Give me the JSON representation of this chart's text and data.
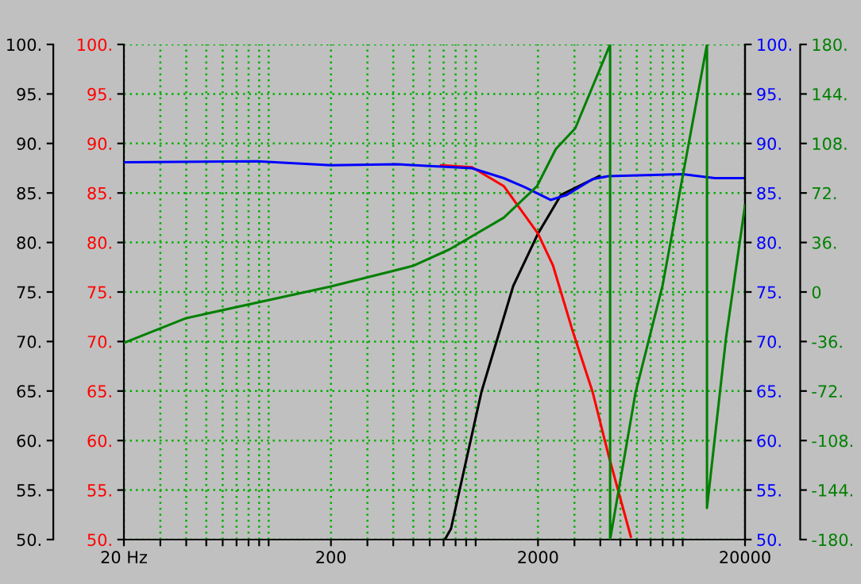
{
  "chart_data": {
    "type": "line",
    "log": "x",
    "grid": true,
    "xlim": [
      20,
      20000
    ],
    "xticks": [
      {
        "value": 20,
        "label": "20 Hz"
      },
      {
        "value": 30,
        "label": null
      },
      {
        "value": 40,
        "label": null
      },
      {
        "value": 50,
        "label": null
      },
      {
        "value": 60,
        "label": null
      },
      {
        "value": 70,
        "label": null
      },
      {
        "value": 80,
        "label": null
      },
      {
        "value": 90,
        "label": null
      },
      {
        "value": 100,
        "label": null
      },
      {
        "value": 200,
        "label": "200"
      },
      {
        "value": 300,
        "label": null
      },
      {
        "value": 400,
        "label": null
      },
      {
        "value": 500,
        "label": null
      },
      {
        "value": 600,
        "label": null
      },
      {
        "value": 700,
        "label": null
      },
      {
        "value": 800,
        "label": null
      },
      {
        "value": 900,
        "label": null
      },
      {
        "value": 1000,
        "label": null
      },
      {
        "value": 2000,
        "label": "2000"
      },
      {
        "value": 3000,
        "label": null
      },
      {
        "value": 4000,
        "label": null
      },
      {
        "value": 5000,
        "label": null
      },
      {
        "value": 6000,
        "label": null
      },
      {
        "value": 7000,
        "label": null
      },
      {
        "value": 8000,
        "label": null
      },
      {
        "value": 9000,
        "label": null
      },
      {
        "value": 10000,
        "label": null
      },
      {
        "value": 20000,
        "label": "20000"
      }
    ],
    "ylim": [
      50,
      100
    ],
    "yticks": [
      {
        "value": 50,
        "label": "50."
      },
      {
        "value": 55,
        "label": "55."
      },
      {
        "value": 60,
        "label": "60."
      },
      {
        "value": 65,
        "label": "65."
      },
      {
        "value": 70,
        "label": "70."
      },
      {
        "value": 75,
        "label": "75."
      },
      {
        "value": 80,
        "label": "80."
      },
      {
        "value": 85,
        "label": "85."
      },
      {
        "value": 90,
        "label": "90."
      },
      {
        "value": 95,
        "label": "95."
      },
      {
        "value": 100,
        "label": "100."
      }
    ],
    "y2lim": [
      50,
      100
    ],
    "y2ticks": [
      {
        "value": 50,
        "label": "50."
      },
      {
        "value": 55,
        "label": "55."
      },
      {
        "value": 60,
        "label": "60."
      },
      {
        "value": 65,
        "label": "65."
      },
      {
        "value": 70,
        "label": "70."
      },
      {
        "value": 75,
        "label": "75."
      },
      {
        "value": 80,
        "label": "80."
      },
      {
        "value": 85,
        "label": "85."
      },
      {
        "value": 90,
        "label": "90."
      },
      {
        "value": 95,
        "label": "95."
      },
      {
        "value": 100,
        "label": "100."
      }
    ],
    "y3lim": [
      -180,
      180
    ],
    "y3ticks": [
      {
        "value": -180,
        "label": "-180."
      },
      {
        "value": -144,
        "label": "-144."
      },
      {
        "value": -108,
        "label": "-108."
      },
      {
        "value": -72,
        "label": "-72."
      },
      {
        "value": -36,
        "label": "-36."
      },
      0,
      {
        "value": 36,
        "label": "36."
      },
      {
        "value": 72,
        "label": "72."
      },
      {
        "value": 108,
        "label": "108."
      },
      {
        "value": 144,
        "label": "144."
      },
      {
        "value": 180,
        "label": "180."
      }
    ],
    "series": [
      {
        "axis": "y",
        "color": "#000000",
        "x": [
          710,
          760,
          1066,
          1518,
          2000,
          2582,
          3946
        ],
        "values": [
          50,
          51.1,
          64.9,
          75.6,
          80.9,
          84.8,
          86.7
        ]
      },
      {
        "axis": "y",
        "color": "#ff0000",
        "x": [
          680,
          960,
          1366,
          2000,
          2361,
          2917,
          3672,
          4384,
          5614
        ],
        "values": [
          87.8,
          87.6,
          85.7,
          80.9,
          77.7,
          71.3,
          64.9,
          58.5,
          50.3
        ]
      },
      {
        "axis": "y2",
        "color": "#0000ff",
        "x": [
          20,
          88,
          200,
          418,
          960,
          1366,
          1718,
          2300,
          2750,
          3672,
          4384,
          10000,
          14300,
          20000
        ],
        "values": [
          88.1,
          88.2,
          87.8,
          87.9,
          87.5,
          86.5,
          85.6,
          84.3,
          84.8,
          86.4,
          86.7,
          86.9,
          86.5,
          86.5
        ]
      },
      {
        "axis": "y3",
        "color": "#008000",
        "x": [
          20,
          40,
          200,
          498,
          748,
          1366,
          1979,
          2440,
          3026,
          4460,
          4460,
          5920,
          8000,
          13100,
          13100,
          16200,
          20000
        ],
        "values": [
          -37,
          -19,
          4,
          19,
          31,
          54,
          77,
          104,
          119,
          180,
          -180,
          -73,
          5,
          180,
          -157,
          -33,
          63
        ]
      }
    ]
  }
}
